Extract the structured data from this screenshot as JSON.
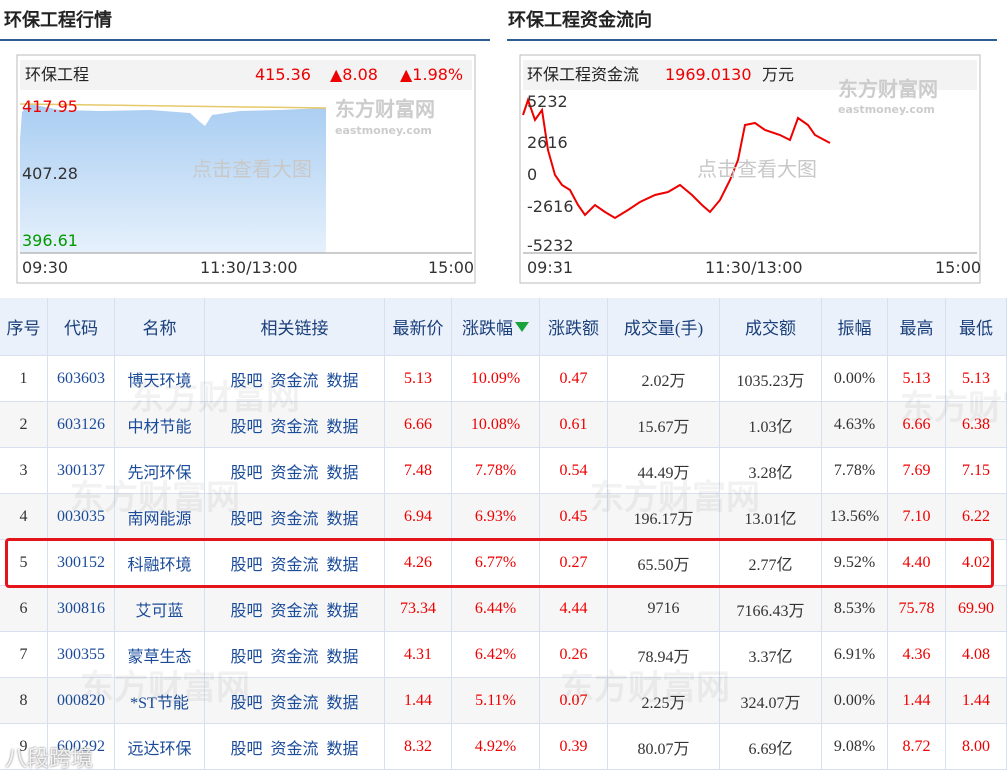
{
  "panels": [
    {
      "title": "环保工程行情",
      "name": "环保工程",
      "value": "415.36",
      "change": "▲8.08",
      "pct": "▲1.98%",
      "ylabels": [
        "417.95",
        "407.28",
        "396.61"
      ],
      "xlabels": [
        "09:30",
        "11:30/13:00",
        "15:00"
      ],
      "watermark": "东方财富网",
      "watermark_en": "eastmoney.com",
      "hint": "点击查看大图"
    },
    {
      "title": "环保工程资金流向",
      "name": "环保工程资金流",
      "value": "1969.0130",
      "unit": "万元",
      "ylabels": [
        "5232",
        "2616",
        "0",
        "-2616",
        "-5232"
      ],
      "xlabels": [
        "09:31",
        "11:30/13:00",
        "15:00"
      ],
      "watermark": "东方财富网",
      "watermark_en": "eastmoney.com",
      "hint": "点击查看大图"
    }
  ],
  "table": {
    "headers": [
      "序号",
      "代码",
      "名称",
      "相关链接",
      "最新价",
      "涨跌幅",
      "涨跌额",
      "成交量(手)",
      "成交额",
      "振幅",
      "最高",
      "最低"
    ],
    "watermark": "东方财富网",
    "rows": [
      [
        "1",
        "603603",
        "博天环境",
        [
          "股吧",
          "资金流",
          "数据"
        ],
        "5.13",
        "10.09%",
        "0.47",
        "2.02万",
        "1035.23万",
        "0.00%",
        "5.13",
        "5.13"
      ],
      [
        "2",
        "603126",
        "中材节能",
        [
          "股吧",
          "资金流",
          "数据"
        ],
        "6.66",
        "10.08%",
        "0.61",
        "15.67万",
        "1.03亿",
        "4.63%",
        "6.66",
        "6.38"
      ],
      [
        "3",
        "300137",
        "先河环保",
        [
          "股吧",
          "资金流",
          "数据"
        ],
        "7.48",
        "7.78%",
        "0.54",
        "44.49万",
        "3.28亿",
        "7.78%",
        "7.69",
        "7.15"
      ],
      [
        "4",
        "003035",
        "南网能源",
        [
          "股吧",
          "资金流",
          "数据"
        ],
        "6.94",
        "6.93%",
        "0.45",
        "196.17万",
        "13.01亿",
        "13.56%",
        "7.10",
        "6.22"
      ],
      [
        "5",
        "300152",
        "科融环境",
        [
          "股吧",
          "资金流",
          "数据"
        ],
        "4.26",
        "6.77%",
        "0.27",
        "65.50万",
        "2.77亿",
        "9.52%",
        "4.40",
        "4.02"
      ],
      [
        "6",
        "300816",
        "艾可蓝",
        [
          "股吧",
          "资金流",
          "数据"
        ],
        "73.34",
        "6.44%",
        "4.44",
        "9716",
        "7166.43万",
        "8.53%",
        "75.78",
        "69.90"
      ],
      [
        "7",
        "300355",
        "蒙草生态",
        [
          "股吧",
          "资金流",
          "数据"
        ],
        "4.31",
        "6.42%",
        "0.26",
        "78.94万",
        "3.37亿",
        "6.91%",
        "4.36",
        "4.08"
      ],
      [
        "8",
        "000820",
        "*ST节能",
        [
          "股吧",
          "资金流",
          "数据"
        ],
        "1.44",
        "5.11%",
        "0.07",
        "2.25万",
        "324.07万",
        "0.00%",
        "1.44",
        "1.44"
      ],
      [
        "9",
        "600292",
        "远达环保",
        [
          "股吧",
          "资金流",
          "数据"
        ],
        "8.32",
        "4.92%",
        "0.39",
        "80.07万",
        "6.69亿",
        "9.08%",
        "8.72",
        "8.00"
      ]
    ]
  },
  "footer_watermark": "八段跨境"
}
